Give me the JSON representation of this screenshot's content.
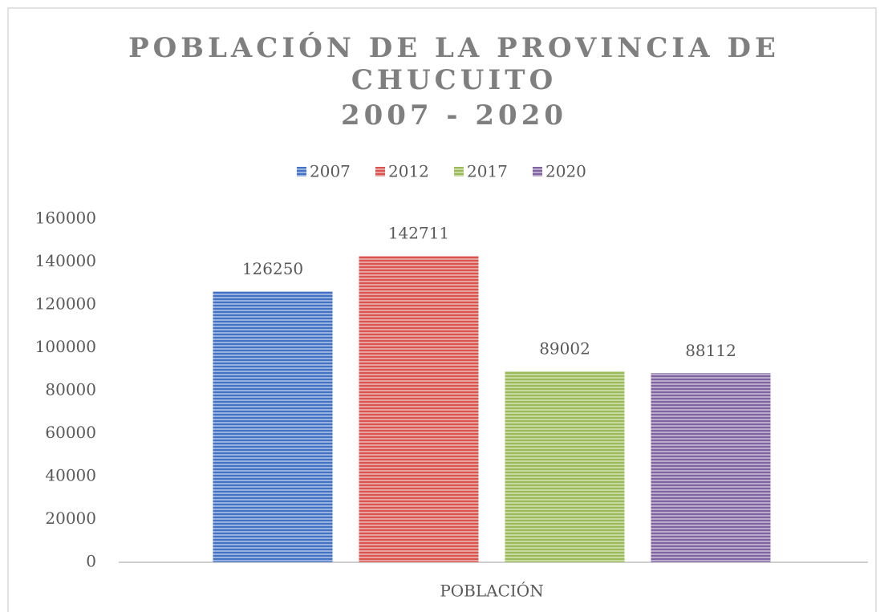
{
  "chart_data": {
    "type": "bar",
    "title": [
      "POBLACIÓN DE LA PROVINCIA DE",
      "CHUCUITO",
      "2007 - 2020"
    ],
    "categories": [
      "POBLACIÓN"
    ],
    "series": [
      {
        "name": "2007",
        "color": "#4472c4",
        "values": [
          126250
        ]
      },
      {
        "name": "2012",
        "color": "#d9534f",
        "values": [
          142711
        ]
      },
      {
        "name": "2017",
        "color": "#9bbb59",
        "values": [
          89002
        ]
      },
      {
        "name": "2020",
        "color": "#8064a2",
        "values": [
          88112
        ]
      }
    ],
    "ylim": [
      0,
      160000
    ],
    "yticks": [
      0,
      20000,
      40000,
      60000,
      80000,
      100000,
      120000,
      140000,
      160000
    ],
    "legend": "top",
    "grid": false
  }
}
